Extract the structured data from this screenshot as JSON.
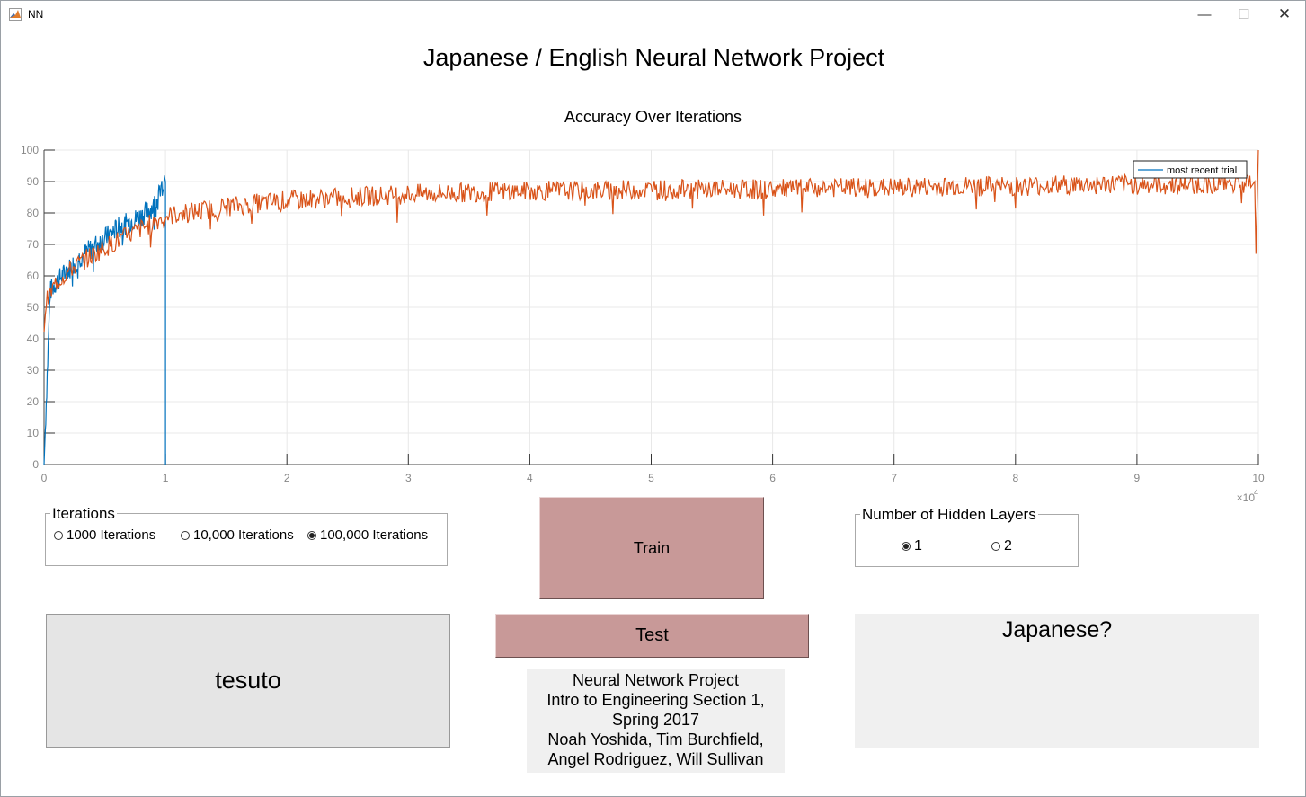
{
  "window": {
    "title": "NN",
    "app_icon": "matlab-icon",
    "controls": {
      "minimize": "minimize-icon",
      "maximize": "maximize-icon",
      "close": "close-icon"
    }
  },
  "main_title": "Japanese / English Neural Network Project",
  "chart_data": {
    "type": "line",
    "title": "Accuracy Over Iterations",
    "xlabel": "",
    "ylabel": "",
    "xlim": [
      0,
      100000
    ],
    "ylim": [
      0,
      100
    ],
    "x_ticks": [
      0,
      1,
      2,
      3,
      4,
      5,
      6,
      7,
      8,
      9,
      10
    ],
    "x_tick_labels": [
      "0",
      "1",
      "2",
      "3",
      "4",
      "5",
      "6",
      "7",
      "8",
      "9",
      "10"
    ],
    "x_exponent_label": "×10",
    "x_exponent_power": "4",
    "y_ticks": [
      0,
      10,
      20,
      30,
      40,
      50,
      60,
      70,
      80,
      90,
      100
    ],
    "y_tick_labels": [
      "0",
      "10",
      "20",
      "30",
      "40",
      "50",
      "60",
      "70",
      "80",
      "90",
      "100"
    ],
    "grid": true,
    "legend_position": "top-right",
    "legend": [
      "most recent trial"
    ],
    "series": [
      {
        "name": "most recent trial",
        "color": "#0072bd",
        "x": [
          0,
          500,
          1000,
          2000,
          3000,
          4000,
          5000,
          6000,
          7000,
          8000,
          9000,
          9900,
          10000
        ],
        "y": [
          0,
          55,
          58,
          62,
          66,
          69,
          72,
          75,
          77,
          79,
          82,
          89,
          0
        ]
      },
      {
        "color": "#d95319",
        "x": [
          0,
          1000,
          2500,
          5000,
          7500,
          10000,
          15000,
          20000,
          25000,
          30000,
          35000,
          40000,
          45000,
          50000,
          55000,
          60000,
          65000,
          70000,
          75000,
          80000,
          85000,
          90000,
          95000,
          99500,
          99700,
          100000
        ],
        "y": [
          50,
          58,
          63,
          69,
          74,
          79,
          82,
          84,
          85,
          86,
          86.5,
          87,
          87,
          87.5,
          87.5,
          87.5,
          88,
          88,
          88.5,
          88.5,
          89,
          89,
          89,
          90,
          67,
          95
        ]
      }
    ]
  },
  "iterations": {
    "label": "Iterations",
    "options": [
      "1000 Iterations",
      "10,000 Iterations",
      "100,000 Iterations"
    ],
    "selected_index": 2
  },
  "train_label": "Train",
  "hidden_layers": {
    "label": "Number of Hidden Layers",
    "options": [
      "1",
      "2"
    ],
    "selected_index": 0
  },
  "output_text": "tesuto",
  "test_label": "Test",
  "credits": [
    "Neural Network Project",
    "Intro to Engineering Section 1,",
    "Spring 2017",
    "Noah Yoshida, Tim Burchfield,",
    "Angel Rodriguez, Will Sullivan"
  ],
  "result_text": "Japanese?"
}
